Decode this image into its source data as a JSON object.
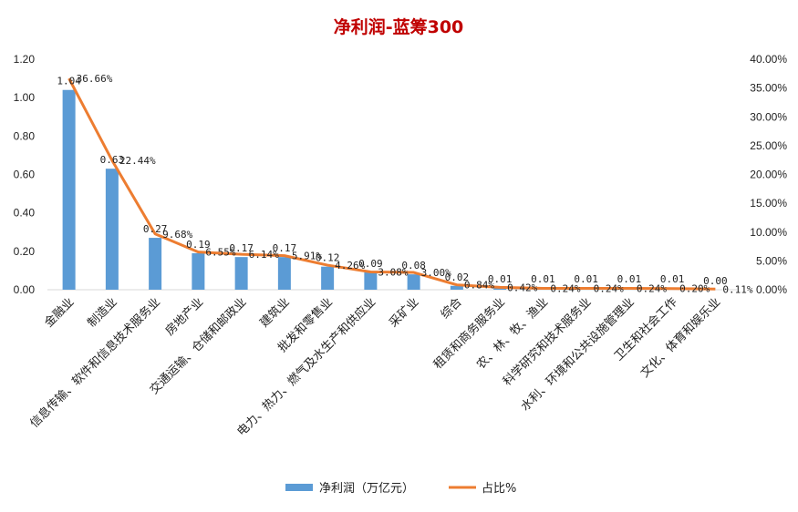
{
  "chart_data": {
    "type": "bar+line",
    "title": "净利润-蓝筹300",
    "colors": {
      "bar": "#5b9bd5",
      "line": "#ed7d31",
      "title": "#c00000"
    },
    "categories": [
      "金融业",
      "制造业",
      "信息传输、软件和信息技术服务业",
      "房地产业",
      "交通运输、仓储和邮政业",
      "建筑业",
      "批发和零售业",
      "电力、热力、燃气及水生产和供应业",
      "采矿业",
      "综合",
      "租赁和商务服务业",
      "农、林、牧、渔业",
      "科学研究和技术服务业",
      "水利、环境和公共设施管理业",
      "卫生和社会工作",
      "文化、体育和娱乐业"
    ],
    "series": [
      {
        "name": "净利润（万亿元）",
        "axis": "left",
        "values": [
          1.04,
          0.63,
          0.27,
          0.19,
          0.17,
          0.17,
          0.12,
          0.09,
          0.08,
          0.02,
          0.01,
          0.01,
          0.01,
          0.01,
          0.01,
          0.0
        ],
        "labels": [
          "1.04",
          "0.63",
          "0.27",
          "0.19",
          "0.17",
          "0.17",
          "0.12",
          "0.09",
          "0.08",
          "0.02",
          "0.01",
          "0.01",
          "0.01",
          "0.01",
          "0.01",
          "0.00"
        ]
      },
      {
        "name": "占比%",
        "axis": "right",
        "values": [
          36.66,
          22.44,
          9.68,
          6.55,
          6.14,
          5.91,
          4.26,
          3.08,
          3.0,
          0.84,
          0.42,
          0.24,
          0.24,
          0.24,
          0.2,
          0.11
        ],
        "labels": [
          "36.66%",
          "22.44%",
          "9.68%",
          "6.55%",
          "6.14%",
          "5.91%",
          "4.26%",
          "3.08%",
          "3.00%",
          "0.84%",
          "0.42%",
          "0.24%",
          "0.24%",
          "0.24%",
          "0.20%",
          "0.11%"
        ]
      }
    ],
    "y_left": {
      "ylim": [
        0,
        1.2
      ],
      "ticks": [
        "0.00",
        "0.20",
        "0.40",
        "0.60",
        "0.80",
        "1.00",
        "1.20"
      ]
    },
    "y_right": {
      "ylim": [
        0,
        40
      ],
      "ticks": [
        "0.00%",
        "5.00%",
        "10.00%",
        "15.00%",
        "20.00%",
        "25.00%",
        "30.00%",
        "35.00%",
        "40.00%"
      ]
    },
    "grid": false,
    "legend": {
      "position": "bottom",
      "items": [
        "净利润（万亿元）",
        "占比%"
      ]
    }
  }
}
